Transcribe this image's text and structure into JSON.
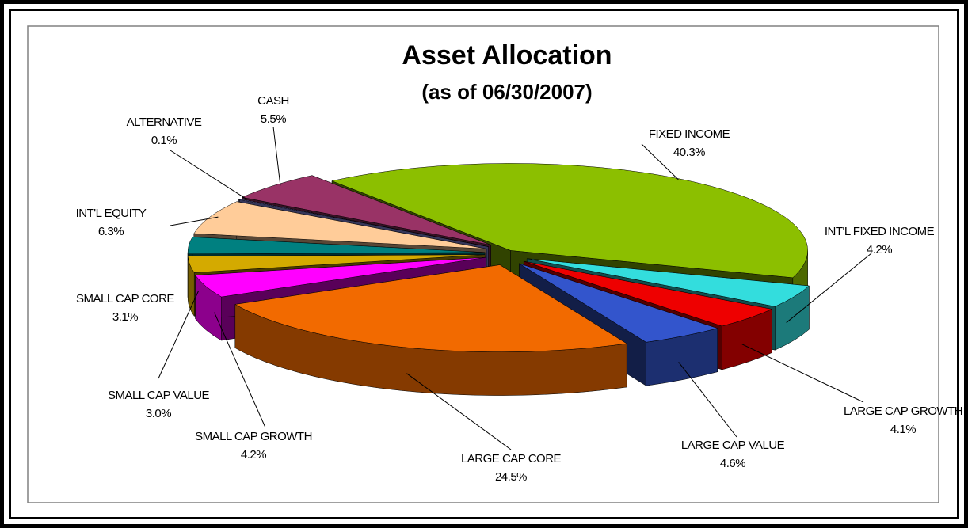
{
  "chart_data": {
    "type": "pie3d",
    "title": "Asset Allocation",
    "subtitle": "(as of 06/30/2007)",
    "categories": [
      "FIXED INCOME",
      "INT'L FIXED INCOME",
      "LARGE CAP GROWTH",
      "LARGE CAP VALUE",
      "LARGE CAP CORE",
      "SMALL CAP GROWTH",
      "SMALL CAP VALUE",
      "SMALL CAP CORE",
      "INT'L EQUITY",
      "ALTERNATIVE",
      "CASH"
    ],
    "values": [
      40.3,
      4.2,
      4.1,
      4.6,
      24.5,
      4.2,
      3.0,
      3.1,
      6.3,
      0.1,
      5.5
    ],
    "value_labels": [
      "40.3%",
      "4.2%",
      "4.1%",
      "4.6%",
      "24.5%",
      "4.2%",
      "3.0%",
      "3.1%",
      "6.3%",
      "0.1%",
      "5.5%"
    ],
    "colors": [
      "#8cbf00",
      "#33dddd",
      "#ee0000",
      "#3355cc",
      "#f26a00",
      "#ff00ff",
      "#d4aa00",
      "#008080",
      "#ffcc99",
      "#9999ff",
      "#993366"
    ]
  }
}
